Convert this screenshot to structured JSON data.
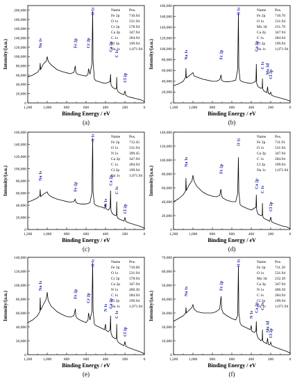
{
  "figure": {
    "xlabel": "Binding Energy / eV",
    "ylabel": "Intensity/(a.u.)",
    "table_header": [
      "Name",
      "Pos."
    ]
  },
  "chart_data": [
    {
      "panel": "(a)",
      "type": "line",
      "xlabel": "Binding Energy / eV",
      "ylabel": "Intensity/(a.u.)",
      "xlim": [
        1200,
        0
      ],
      "xticks": [
        1200,
        1000,
        800,
        600,
        400,
        200,
        0
      ],
      "ylim": [
        0,
        210000
      ],
      "yticks": [
        0,
        20000,
        40000,
        60000,
        80000,
        100000,
        120000,
        140000,
        160000,
        180000,
        200000
      ],
      "ytick_labels": [
        "0",
        "20,000",
        "40,000",
        "60,000",
        "80,000",
        "100,000",
        "120,000",
        "140,000",
        "160,000",
        "180,000",
        "200,000"
      ],
      "table": [
        [
          "Fe 2p",
          "710.94"
        ],
        [
          "O 1s",
          "531.94"
        ],
        [
          "Cr 2p",
          "578.94"
        ],
        [
          "Ca 2p",
          "347.94"
        ],
        [
          "C 1s",
          "284.94"
        ],
        [
          "Cl 2p",
          "199.94"
        ],
        [
          "Na 1s",
          "1,071.94"
        ]
      ],
      "peak_labels": [
        {
          "text": "Na 1s",
          "x": 1072,
          "y": 118000
        },
        {
          "text": "Fe 2p",
          "x": 711,
          "y": 118000
        },
        {
          "text": "Cr 2p",
          "x": 579,
          "y": 118000
        },
        {
          "text": "O 1s",
          "x": 532,
          "y": 200000
        },
        {
          "text": "Ca 2p",
          "x": 348,
          "y": 110000
        },
        {
          "text": "C 1s",
          "x": 285,
          "y": 98000
        },
        {
          "text": "Cl 2p",
          "x": 200,
          "y": 44000
        }
      ],
      "x": [
        1200,
        1150,
        1100,
        1075,
        1072,
        1068,
        1040,
        1010,
        1000,
        990,
        960,
        900,
        850,
        800,
        760,
        725,
        711,
        705,
        690,
        650,
        600,
        580,
        575,
        560,
        540,
        532,
        528,
        515,
        500,
        470,
        440,
        400,
        352,
        348,
        344,
        330,
        300,
        287,
        285,
        282,
        270,
        240,
        210,
        200,
        190,
        160,
        120,
        80,
        40,
        10,
        0
      ],
      "y": [
        56000,
        60000,
        66000,
        74000,
        86000,
        72000,
        84000,
        90000,
        100000,
        90000,
        82000,
        72000,
        68000,
        65000,
        63000,
        66000,
        80000,
        66000,
        62000,
        60000,
        58000,
        62000,
        74000,
        62000,
        84000,
        198000,
        90000,
        52000,
        48000,
        46000,
        44000,
        42000,
        46000,
        62000,
        40000,
        34000,
        30000,
        32000,
        56000,
        30000,
        24000,
        20000,
        18000,
        26000,
        16000,
        13000,
        11000,
        9000,
        7000,
        4000,
        3000
      ]
    },
    {
      "panel": "(b)",
      "type": "line",
      "xlabel": "Binding Energy / eV",
      "ylabel": "Intensity/(a.u.)",
      "xlim": [
        1200,
        0
      ],
      "xticks": [
        1200,
        1000,
        800,
        600,
        400,
        200,
        0
      ],
      "ylim": [
        0,
        180000
      ],
      "yticks": [
        0,
        20000,
        40000,
        60000,
        80000,
        100000,
        120000,
        140000,
        160000,
        180000
      ],
      "ytick_labels": [
        "0",
        "20,000",
        "40,000",
        "60,000",
        "80,000",
        "100,000",
        "120,000",
        "140,000",
        "160,000",
        "180,000"
      ],
      "table": [
        [
          "Fe 2p",
          "710.70"
        ],
        [
          "O 1s",
          "531.94"
        ],
        [
          "Mo 3d",
          "231.70"
        ],
        [
          "Ca 2p",
          "347.94"
        ],
        [
          "C 1s",
          "284.94"
        ],
        [
          "Cl 2p",
          "199.94"
        ],
        [
          "Na 1s",
          "1,071.94"
        ]
      ],
      "peak_labels": [
        {
          "text": "Na 1s",
          "x": 1072,
          "y": 80000
        },
        {
          "text": "Fe 2p",
          "x": 711,
          "y": 80000
        },
        {
          "text": "O 1s",
          "x": 532,
          "y": 170000
        },
        {
          "text": "Ca 2p",
          "x": 348,
          "y": 95000
        },
        {
          "text": "C 1s",
          "x": 285,
          "y": 62000
        },
        {
          "text": "Mo 3d",
          "x": 232,
          "y": 52000
        },
        {
          "text": "Cl 2p",
          "x": 200,
          "y": 44000
        }
      ],
      "x": [
        1200,
        1150,
        1100,
        1075,
        1072,
        1068,
        1040,
        1000,
        990,
        960,
        900,
        850,
        800,
        760,
        725,
        711,
        705,
        690,
        650,
        600,
        560,
        540,
        532,
        528,
        515,
        500,
        470,
        440,
        400,
        352,
        348,
        344,
        330,
        300,
        287,
        285,
        282,
        270,
        240,
        232,
        225,
        210,
        200,
        190,
        160,
        120,
        80,
        40,
        10,
        0
      ],
      "y": [
        32000,
        35000,
        40000,
        48000,
        64000,
        46000,
        50000,
        56000,
        50000,
        48000,
        44000,
        42000,
        40000,
        40000,
        43000,
        52000,
        42000,
        40000,
        39000,
        40000,
        42000,
        62000,
        166000,
        64000,
        42000,
        40000,
        38000,
        37000,
        36000,
        40000,
        72000,
        36000,
        30000,
        27000,
        28000,
        45000,
        26000,
        22000,
        19000,
        30000,
        18000,
        16000,
        20000,
        14000,
        12000,
        10000,
        8000,
        6000,
        4000,
        3000
      ]
    },
    {
      "panel": "(c)",
      "type": "line",
      "xlabel": "Binding Energy / eV",
      "ylabel": "Intensity/(a.u.)",
      "xlim": [
        1200,
        0
      ],
      "xticks": [
        1200,
        1000,
        800,
        600,
        400,
        200,
        0
      ],
      "ylim": [
        0,
        160000
      ],
      "yticks": [
        0,
        20000,
        40000,
        60000,
        80000,
        100000,
        120000,
        140000,
        160000
      ],
      "ytick_labels": [
        "0",
        "20,000",
        "40,000",
        "60,000",
        "80,000",
        "100,000",
        "120,000",
        "140,000",
        "160,000"
      ],
      "table": [
        [
          "Fe 2p",
          "712.45"
        ],
        [
          "O 1s",
          "531.94"
        ],
        [
          "N 1s",
          "399.45"
        ],
        [
          "Ca 2p",
          "347.94"
        ],
        [
          "C 1s",
          "284.94"
        ],
        [
          "Cl 2p",
          "199.94"
        ],
        [
          "Na 1s",
          "1,071.94"
        ]
      ],
      "peak_labels": [
        {
          "text": "Na 1s",
          "x": 1072,
          "y": 80000
        },
        {
          "text": "Fe 2p",
          "x": 712,
          "y": 62000
        },
        {
          "text": "O 1s",
          "x": 532,
          "y": 158000
        },
        {
          "text": "N 1s",
          "x": 399,
          "y": 38000
        },
        {
          "text": "Ca 2p",
          "x": 348,
          "y": 72000
        },
        {
          "text": "C 1s",
          "x": 285,
          "y": 58000
        },
        {
          "text": "Cl 2p",
          "x": 200,
          "y": 26000
        }
      ],
      "x": [
        1200,
        1150,
        1100,
        1075,
        1072,
        1068,
        1040,
        1000,
        990,
        960,
        900,
        850,
        800,
        760,
        725,
        712,
        705,
        690,
        650,
        600,
        560,
        540,
        532,
        528,
        515,
        500,
        470,
        440,
        410,
        399,
        395,
        370,
        352,
        348,
        344,
        330,
        300,
        287,
        285,
        282,
        270,
        240,
        210,
        200,
        190,
        160,
        120,
        80,
        40,
        10,
        0
      ],
      "y": [
        45000,
        48000,
        52000,
        56000,
        66000,
        54000,
        58000,
        62000,
        58000,
        54000,
        50000,
        48000,
        46000,
        45000,
        46000,
        50000,
        45000,
        43000,
        42000,
        42000,
        44000,
        60000,
        150000,
        62000,
        42000,
        40000,
        38000,
        37000,
        35000,
        42000,
        34000,
        32000,
        36000,
        64000,
        32000,
        26000,
        23000,
        24000,
        46000,
        22000,
        18000,
        16000,
        14000,
        20000,
        13000,
        11000,
        9000,
        7000,
        5000,
        3000,
        2000
      ]
    },
    {
      "panel": "(d)",
      "type": "line",
      "xlabel": "Binding Energy / eV",
      "ylabel": "Intensity/(a.u.)",
      "xlim": [
        1200,
        0
      ],
      "xticks": [
        1200,
        1000,
        800,
        600,
        400,
        200,
        0
      ],
      "ylim": [
        0,
        140000
      ],
      "yticks": [
        0,
        20000,
        40000,
        60000,
        80000,
        100000,
        120000,
        140000
      ],
      "ytick_labels": [
        "0",
        "20,000",
        "40,000",
        "60,000",
        "80,000",
        "100,000",
        "120,000",
        "140,000"
      ],
      "table": [
        [
          "Fe 2p",
          "711.91"
        ],
        [
          "O 1s",
          "531.94"
        ],
        [
          "Ca 2p",
          "347.94"
        ],
        [
          "C 1s",
          "284.94"
        ],
        [
          "Cl 2p",
          "199.94"
        ],
        [
          "Na 1s",
          "1,071.94"
        ]
      ],
      "peak_labels": [
        {
          "text": "Na 1s",
          "x": 1072,
          "y": 90000
        },
        {
          "text": "Fe 2p",
          "x": 712,
          "y": 80000
        },
        {
          "text": "O 1s",
          "x": 532,
          "y": 120000
        },
        {
          "text": "Ca 2p",
          "x": 348,
          "y": 58000
        },
        {
          "text": "C 1s",
          "x": 285,
          "y": 52000
        },
        {
          "text": "Cl 2p",
          "x": 200,
          "y": 26000
        }
      ],
      "x": [
        1200,
        1150,
        1100,
        1075,
        1072,
        1068,
        1040,
        1010,
        1000,
        990,
        960,
        900,
        850,
        800,
        760,
        725,
        712,
        705,
        690,
        650,
        600,
        560,
        540,
        532,
        528,
        515,
        500,
        470,
        440,
        400,
        352,
        348,
        344,
        330,
        300,
        287,
        285,
        282,
        270,
        240,
        210,
        200,
        190,
        160,
        120,
        80,
        40,
        10,
        0
      ],
      "y": [
        40000,
        44000,
        50000,
        56000,
        74000,
        56000,
        64000,
        70000,
        78000,
        70000,
        62000,
        54000,
        50000,
        48000,
        47000,
        49000,
        58000,
        48000,
        45000,
        42000,
        40000,
        40000,
        52000,
        104000,
        54000,
        36000,
        34000,
        32000,
        30000,
        28000,
        32000,
        50000,
        28000,
        22000,
        20000,
        21000,
        38000,
        19000,
        16000,
        14000,
        12000,
        18000,
        11000,
        9000,
        7000,
        5000,
        4000,
        2000,
        1000
      ]
    },
    {
      "panel": "(e)",
      "type": "line",
      "xlabel": "Binding Energy / eV",
      "ylabel": "Intensity/(a.u.)",
      "xlim": [
        1200,
        0
      ],
      "xticks": [
        1200,
        1000,
        800,
        600,
        400,
        200,
        0
      ],
      "ylim": [
        0,
        140000
      ],
      "yticks": [
        0,
        20000,
        40000,
        60000,
        80000,
        100000,
        120000,
        140000
      ],
      "ytick_labels": [
        "0",
        "20,000",
        "40,000",
        "60,000",
        "80,000",
        "100,000",
        "120,000",
        "140,000"
      ],
      "table": [
        [
          "Fe 2p",
          "710.00"
        ],
        [
          "O 1s",
          "531.94"
        ],
        [
          "Cr 2p",
          "578.94"
        ],
        [
          "Ca 2p",
          "347.94"
        ],
        [
          "N 1s",
          "400.30"
        ],
        [
          "C 1s",
          "284.94"
        ],
        [
          "Cl 2p",
          "199.94"
        ],
        [
          "Na 1s",
          "1,071.94"
        ]
      ],
      "peak_labels": [
        {
          "text": "Na 1s",
          "x": 1072,
          "y": 92000
        },
        {
          "text": "Fe 2p",
          "x": 710,
          "y": 80000
        },
        {
          "text": "Cr 2p",
          "x": 579,
          "y": 74000
        },
        {
          "text": "O 1s",
          "x": 532,
          "y": 140000
        },
        {
          "text": "N 1s",
          "x": 400,
          "y": 62000
        },
        {
          "text": "Ca 2p",
          "x": 348,
          "y": 66000
        },
        {
          "text": "C 1s",
          "x": 285,
          "y": 52000
        },
        {
          "text": "Cl 2p",
          "x": 200,
          "y": 26000
        }
      ],
      "x": [
        1200,
        1150,
        1100,
        1075,
        1072,
        1068,
        1040,
        1010,
        1000,
        990,
        960,
        900,
        850,
        800,
        760,
        725,
        710,
        705,
        690,
        650,
        600,
        580,
        575,
        560,
        540,
        532,
        528,
        515,
        500,
        470,
        440,
        410,
        400,
        395,
        370,
        352,
        348,
        344,
        330,
        300,
        287,
        285,
        282,
        270,
        240,
        210,
        200,
        190,
        160,
        120,
        80,
        40,
        10,
        0
      ],
      "y": [
        46000,
        50000,
        56000,
        62000,
        82000,
        64000,
        72000,
        80000,
        90000,
        78000,
        70000,
        62000,
        58000,
        55000,
        54000,
        56000,
        66000,
        55000,
        52000,
        49000,
        46000,
        50000,
        60000,
        50000,
        62000,
        132000,
        64000,
        44000,
        42000,
        40000,
        38000,
        36000,
        44000,
        35000,
        33000,
        36000,
        56000,
        32000,
        26000,
        23000,
        24000,
        44000,
        22000,
        18000,
        15000,
        13000,
        19000,
        12000,
        10000,
        8000,
        6000,
        4000,
        2000,
        1000
      ]
    },
    {
      "panel": "(f)",
      "type": "line",
      "xlabel": "Binding Energy / eV",
      "ylabel": "Intensity/(a.u.)",
      "xlim": [
        1200,
        0
      ],
      "xticks": [
        1200,
        1000,
        800,
        600,
        400,
        200,
        0
      ],
      "ylim": [
        0,
        70000
      ],
      "yticks": [
        0,
        10000,
        20000,
        30000,
        40000,
        50000,
        60000,
        70000
      ],
      "ytick_labels": [
        "0",
        "10,000",
        "20,000",
        "30,000",
        "40,000",
        "50,000",
        "60,000",
        "70,000"
      ],
      "table": [
        [
          "Fe 2p",
          "711.39"
        ],
        [
          "O 1s",
          "531.94"
        ],
        [
          "Mo 3d",
          "232.39"
        ],
        [
          "Ca 2p",
          "347.94"
        ],
        [
          "N 1s",
          "400.39"
        ],
        [
          "C 1s",
          "284.94"
        ],
        [
          "Cl 2p",
          "199.94"
        ],
        [
          "Na 1s",
          "1,071.94"
        ]
      ],
      "peak_labels": [
        {
          "text": "Na 1s",
          "x": 1072,
          "y": 42000
        },
        {
          "text": "Fe 2p",
          "x": 711,
          "y": 46000
        },
        {
          "text": "O 1s",
          "x": 532,
          "y": 68000
        },
        {
          "text": "N 1s",
          "x": 400,
          "y": 26000
        },
        {
          "text": "Ca 2p",
          "x": 348,
          "y": 30000
        },
        {
          "text": "C 1s",
          "x": 285,
          "y": 32000
        },
        {
          "text": "Mo 3d",
          "x": 232,
          "y": 16000
        },
        {
          "text": "Cl 2p",
          "x": 200,
          "y": 12000
        }
      ],
      "x": [
        1200,
        1150,
        1100,
        1075,
        1072,
        1068,
        1040,
        1010,
        1000,
        990,
        960,
        900,
        850,
        800,
        760,
        725,
        711,
        705,
        690,
        650,
        600,
        560,
        540,
        532,
        528,
        515,
        500,
        470,
        440,
        410,
        400,
        395,
        370,
        352,
        348,
        344,
        330,
        300,
        287,
        285,
        282,
        270,
        240,
        232,
        225,
        210,
        200,
        190,
        160,
        120,
        80,
        40,
        10,
        0
      ],
      "y": [
        24000,
        26000,
        28000,
        30000,
        34000,
        30000,
        32000,
        34000,
        36000,
        33000,
        31000,
        30000,
        30000,
        30000,
        31000,
        33000,
        42000,
        33000,
        30000,
        28000,
        26000,
        25000,
        28000,
        64000,
        30000,
        23000,
        21000,
        20000,
        19000,
        18000,
        21000,
        17000,
        16000,
        17000,
        24000,
        15000,
        12000,
        10000,
        11000,
        18000,
        10000,
        9000,
        8000,
        12000,
        7500,
        7000,
        9000,
        6500,
        5500,
        4500,
        3500,
        2500,
        1500,
        1000
      ]
    }
  ]
}
